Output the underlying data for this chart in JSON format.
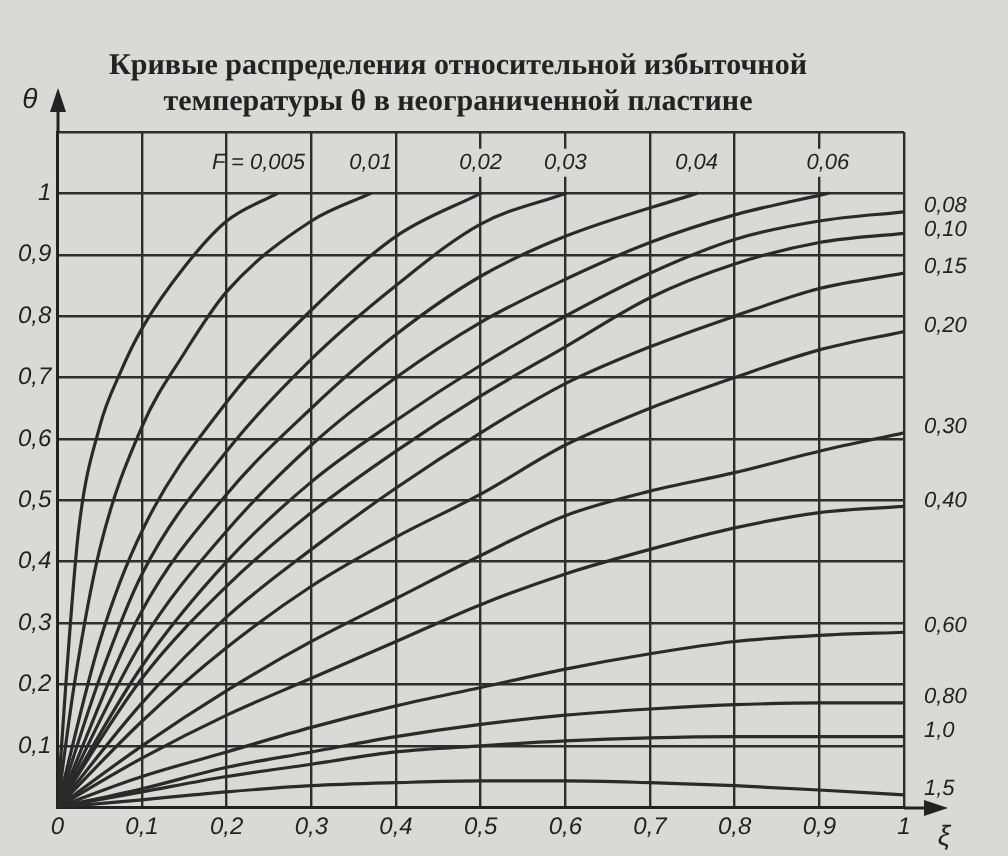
{
  "chart_data": {
    "type": "line",
    "title": "Кривые распределения относительной избыточной\nтемпературы θ в неограниченной пластине",
    "xlabel": "ξ",
    "ylabel": "θ",
    "xlim": [
      0,
      1
    ],
    "ylim": [
      0,
      1.1
    ],
    "xticks": [
      0,
      {
        "value": 0.1,
        "label": "0,1"
      },
      {
        "value": 0.2,
        "label": "0,2"
      },
      {
        "value": 0.3,
        "label": "0,3"
      },
      {
        "value": 0.4,
        "label": "0,4"
      },
      {
        "value": 0.5,
        "label": "0,5"
      },
      {
        "value": 0.6,
        "label": "0,6"
      },
      {
        "value": 0.7,
        "label": "0,7"
      },
      {
        "value": 0.8,
        "label": "0,8"
      },
      {
        "value": 0.9,
        "label": "0,9"
      },
      1
    ],
    "yticks": [
      {
        "value": 0.1,
        "label": "0,1"
      },
      {
        "value": 0.2,
        "label": "0,2"
      },
      {
        "value": 0.3,
        "label": "0,3"
      },
      {
        "value": 0.4,
        "label": "0,4"
      },
      {
        "value": 0.5,
        "label": "0,5"
      },
      {
        "value": 0.6,
        "label": "0,6"
      },
      {
        "value": 0.7,
        "label": "0,7"
      },
      {
        "value": 0.8,
        "label": "0,8"
      },
      {
        "value": 0.9,
        "label": "0,9"
      },
      1,
      {
        "value": 1.1,
        "label": null
      }
    ],
    "grid": true,
    "legend": false,
    "marker": "none",
    "line_style": "solid",
    "annotations": [
      "F ="
    ],
    "series": [
      {
        "name": "0,005",
        "color": "#2a2a2a",
        "x": [
          0,
          0.01,
          0.025,
          0.05,
          0.075,
          0.1,
          0.15,
          0.2,
          0.26
        ],
        "values": [
          0,
          0.2,
          0.45,
          0.62,
          0.71,
          0.78,
          0.88,
          0.955,
          1
        ]
      },
      {
        "name": "0,01",
        "color": "#2a2a2a",
        "x": [
          0,
          0.02,
          0.05,
          0.1,
          0.15,
          0.2,
          0.3,
          0.37
        ],
        "values": [
          0,
          0.2,
          0.42,
          0.62,
          0.74,
          0.84,
          0.955,
          1
        ]
      },
      {
        "name": "0,02",
        "color": "#2a2a2a",
        "x": [
          0,
          0.05,
          0.1,
          0.2,
          0.3,
          0.4,
          0.5
        ],
        "values": [
          0,
          0.27,
          0.45,
          0.66,
          0.81,
          0.93,
          1
        ]
      },
      {
        "name": "0,03",
        "color": "#2a2a2a",
        "x": [
          0,
          0.05,
          0.1,
          0.2,
          0.3,
          0.4,
          0.5,
          0.6
        ],
        "values": [
          0,
          0.21,
          0.38,
          0.58,
          0.73,
          0.85,
          0.95,
          1
        ]
      },
      {
        "name": "0,04",
        "color": "#2a2a2a",
        "x": [
          0,
          0.1,
          0.2,
          0.3,
          0.4,
          0.5,
          0.6,
          0.755
        ],
        "values": [
          0,
          0.32,
          0.51,
          0.65,
          0.77,
          0.865,
          0.93,
          1
        ]
      },
      {
        "name": "0,06",
        "color": "#2a2a2a",
        "x": [
          0,
          0.1,
          0.2,
          0.3,
          0.4,
          0.5,
          0.6,
          0.7,
          0.8,
          0.91
        ],
        "values": [
          0,
          0.27,
          0.45,
          0.59,
          0.7,
          0.79,
          0.86,
          0.92,
          0.965,
          1
        ]
      },
      {
        "name": "0,08",
        "color": "#2a2a2a",
        "x": [
          0,
          0.1,
          0.2,
          0.3,
          0.4,
          0.5,
          0.6,
          0.7,
          0.8,
          0.9,
          1
        ],
        "values": [
          0,
          0.23,
          0.4,
          0.53,
          0.63,
          0.72,
          0.8,
          0.87,
          0.925,
          0.955,
          0.97
        ]
      },
      {
        "name": "0,10",
        "color": "#2a2a2a",
        "x": [
          0,
          0.1,
          0.2,
          0.3,
          0.4,
          0.5,
          0.6,
          0.7,
          0.8,
          0.9,
          1
        ],
        "values": [
          0,
          0.21,
          0.36,
          0.48,
          0.58,
          0.67,
          0.75,
          0.83,
          0.885,
          0.92,
          0.935
        ]
      },
      {
        "name": "0,15",
        "color": "#2a2a2a",
        "x": [
          0,
          0.1,
          0.2,
          0.3,
          0.4,
          0.5,
          0.6,
          0.7,
          0.8,
          0.9,
          1
        ],
        "values": [
          0,
          0.17,
          0.31,
          0.42,
          0.52,
          0.61,
          0.69,
          0.75,
          0.8,
          0.845,
          0.87
        ]
      },
      {
        "name": "0,20",
        "color": "#2a2a2a",
        "x": [
          0,
          0.1,
          0.2,
          0.3,
          0.4,
          0.5,
          0.6,
          0.7,
          0.8,
          0.9,
          1
        ],
        "values": [
          0,
          0.14,
          0.26,
          0.36,
          0.44,
          0.51,
          0.59,
          0.65,
          0.7,
          0.745,
          0.775
        ]
      },
      {
        "name": "0,30",
        "color": "#2a2a2a",
        "x": [
          0,
          0.1,
          0.2,
          0.3,
          0.4,
          0.5,
          0.6,
          0.7,
          0.8,
          0.9,
          1
        ],
        "values": [
          0,
          0.1,
          0.19,
          0.27,
          0.34,
          0.41,
          0.475,
          0.515,
          0.545,
          0.58,
          0.61
        ]
      },
      {
        "name": "0,40",
        "color": "#2a2a2a",
        "x": [
          0,
          0.1,
          0.2,
          0.3,
          0.4,
          0.5,
          0.6,
          0.7,
          0.8,
          0.9,
          1
        ],
        "values": [
          0,
          0.08,
          0.15,
          0.21,
          0.27,
          0.33,
          0.38,
          0.42,
          0.455,
          0.48,
          0.49
        ]
      },
      {
        "name": "0,60",
        "color": "#2a2a2a",
        "x": [
          0,
          0.1,
          0.2,
          0.3,
          0.4,
          0.5,
          0.6,
          0.7,
          0.8,
          0.9,
          1
        ],
        "values": [
          0,
          0.05,
          0.09,
          0.13,
          0.165,
          0.195,
          0.225,
          0.25,
          0.27,
          0.28,
          0.285
        ]
      },
      {
        "name": "0,80",
        "color": "#2a2a2a",
        "x": [
          0,
          0.1,
          0.2,
          0.3,
          0.4,
          0.5,
          0.6,
          0.7,
          0.8,
          0.9,
          1
        ],
        "values": [
          0,
          0.03,
          0.065,
          0.09,
          0.115,
          0.135,
          0.15,
          0.16,
          0.167,
          0.17,
          0.17
        ]
      },
      {
        "name": "1,0",
        "color": "#2a2a2a",
        "x": [
          0,
          0.1,
          0.2,
          0.3,
          0.4,
          0.5,
          0.6,
          0.7,
          0.8,
          0.9,
          1
        ],
        "values": [
          0,
          0.025,
          0.05,
          0.07,
          0.09,
          0.1,
          0.108,
          0.113,
          0.115,
          0.115,
          0.115
        ]
      },
      {
        "name": "1,5",
        "color": "#2a2a2a",
        "x": [
          0,
          0.1,
          0.2,
          0.3,
          0.4,
          0.5,
          0.6,
          0.7,
          0.8,
          0.9,
          1
        ],
        "values": [
          0,
          0.012,
          0.025,
          0.035,
          0.04,
          0.043,
          0.043,
          0.04,
          0.035,
          0.028,
          0.02
        ]
      }
    ]
  }
}
